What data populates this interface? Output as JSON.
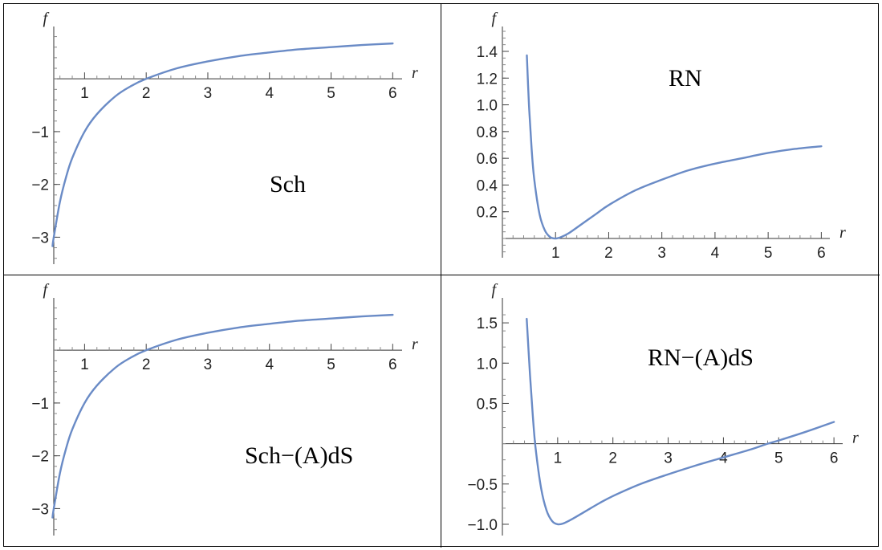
{
  "colors": {
    "curve": "#6a8bc6",
    "border": "#000000",
    "axis": "#333333"
  },
  "chart_data": [
    {
      "type": "line",
      "label": "Sch",
      "xlabel": "r",
      "ylabel": "f",
      "xlim": [
        0.5,
        6.1
      ],
      "ylim": [
        -3.45,
        0.9
      ],
      "xticks": [
        1,
        2,
        3,
        4,
        5,
        6
      ],
      "yticks": [
        -3,
        -2,
        -1
      ],
      "xtick_labels": [
        "1",
        "2",
        "3",
        "4",
        "5",
        "6"
      ],
      "ytick_labels": [
        "−3",
        "−2",
        "−1"
      ],
      "grid": false,
      "series": [
        {
          "x": [
            0.48,
            0.5,
            0.6,
            0.7,
            0.8,
            1.0,
            1.2,
            1.5,
            1.75,
            2.0,
            2.5,
            3.0,
            3.5,
            4.0,
            4.5,
            5.0,
            5.5,
            6.0
          ],
          "y": [
            -3.17,
            -3.0,
            -2.33,
            -1.86,
            -1.5,
            -1.0,
            -0.67,
            -0.33,
            -0.14,
            0.0,
            0.2,
            0.33,
            0.43,
            0.5,
            0.56,
            0.6,
            0.64,
            0.67
          ]
        }
      ]
    },
    {
      "type": "line",
      "label": "RN",
      "xlabel": "r",
      "ylabel": "f",
      "xlim": [
        0.0,
        6.1
      ],
      "ylim": [
        -0.12,
        1.55
      ],
      "xticks": [
        1,
        2,
        3,
        4,
        5,
        6
      ],
      "yticks": [
        0.2,
        0.4,
        0.6,
        0.8,
        1.0,
        1.2,
        1.4
      ],
      "xtick_labels": [
        "1",
        "2",
        "3",
        "4",
        "5",
        "6"
      ],
      "ytick_labels": [
        "0.2",
        "0.4",
        "0.6",
        "0.8",
        "1.0",
        "1.2",
        "1.4"
      ],
      "grid": false,
      "series": [
        {
          "x": [
            0.46,
            0.5,
            0.55,
            0.6,
            0.7,
            0.8,
            0.9,
            1.0,
            1.1,
            1.25,
            1.5,
            1.75,
            2.0,
            2.5,
            3.0,
            3.5,
            4.0,
            4.5,
            5.0,
            5.5,
            6.0
          ],
          "y": [
            1.37,
            1.0,
            0.67,
            0.44,
            0.18,
            0.06,
            0.01,
            0.0,
            0.01,
            0.04,
            0.11,
            0.18,
            0.25,
            0.36,
            0.44,
            0.51,
            0.56,
            0.6,
            0.64,
            0.67,
            0.69
          ]
        }
      ]
    },
    {
      "type": "line",
      "label": "Sch−(A)dS",
      "xlabel": "r",
      "ylabel": "f",
      "xlim": [
        0.5,
        6.1
      ],
      "ylim": [
        -3.45,
        0.9
      ],
      "xticks": [
        1,
        2,
        3,
        4,
        5,
        6
      ],
      "yticks": [
        -3,
        -2,
        -1
      ],
      "xtick_labels": [
        "1",
        "2",
        "3",
        "4",
        "5",
        "6"
      ],
      "ytick_labels": [
        "−3",
        "−2",
        "−1"
      ],
      "grid": false,
      "series": [
        {
          "x": [
            0.48,
            0.5,
            0.6,
            0.7,
            0.8,
            1.0,
            1.2,
            1.5,
            1.75,
            2.0,
            2.5,
            3.0,
            3.5,
            4.0,
            4.5,
            5.0,
            5.5,
            6.0
          ],
          "y": [
            -3.17,
            -3.0,
            -2.33,
            -1.86,
            -1.5,
            -1.0,
            -0.67,
            -0.33,
            -0.14,
            0.0,
            0.2,
            0.33,
            0.43,
            0.5,
            0.56,
            0.6,
            0.64,
            0.67
          ]
        }
      ]
    },
    {
      "type": "line",
      "label": "RN−(A)dS",
      "xlabel": "r",
      "ylabel": "f",
      "xlim": [
        0.0,
        6.1
      ],
      "ylim": [
        -1.1,
        1.75
      ],
      "xticks": [
        1,
        2,
        3,
        4,
        5,
        6
      ],
      "yticks": [
        -1.0,
        -0.5,
        0.5,
        1.0,
        1.5
      ],
      "xtick_labels": [
        "1",
        "2",
        "3",
        "4",
        "5",
        "6"
      ],
      "ytick_labels": [
        "−1.0",
        "−0.5",
        "0.5",
        "1.0",
        "1.5"
      ],
      "grid": false,
      "series": [
        {
          "x": [
            0.44,
            0.5,
            0.55,
            0.6,
            0.7,
            0.8,
            0.9,
            1.0,
            1.1,
            1.25,
            1.5,
            1.75,
            2.0,
            2.5,
            3.0,
            3.5,
            4.0,
            4.5,
            4.8,
            5.0,
            5.5,
            6.0
          ],
          "y": [
            1.55,
            0.85,
            0.35,
            -0.05,
            -0.55,
            -0.83,
            -0.96,
            -1.0,
            -0.99,
            -0.94,
            -0.84,
            -0.74,
            -0.65,
            -0.5,
            -0.38,
            -0.27,
            -0.17,
            -0.07,
            0.0,
            0.04,
            0.15,
            0.27
          ]
        }
      ]
    }
  ]
}
